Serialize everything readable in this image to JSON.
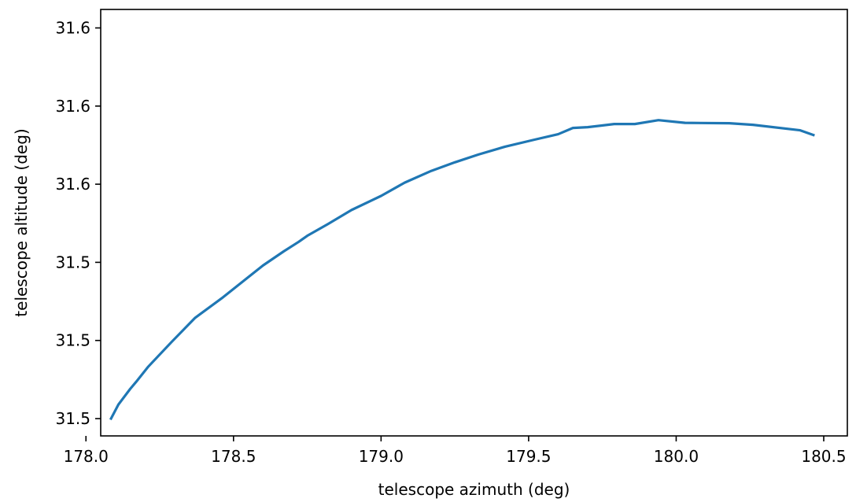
{
  "chart_data": {
    "type": "line",
    "title": "",
    "xlabel": "telescope azimuth (deg)",
    "ylabel": "telescope altitude (deg)",
    "xlim": [
      178.05,
      180.58
    ],
    "ylim": [
      31.5,
      31.6
    ],
    "x_ticks": [
      178.0,
      178.5,
      179.0,
      179.5,
      180.0,
      180.5
    ],
    "x_tick_labels": [
      "178.0",
      "178.5",
      "179.0",
      "179.5",
      "180.0",
      "180.5"
    ],
    "y_ticks": [
      31.5,
      31.52,
      31.54,
      31.56,
      31.58,
      31.6
    ],
    "y_tick_labels": [
      "31.5",
      "31.5",
      "31.5",
      "31.6",
      "31.6",
      "31.6"
    ],
    "grid": false,
    "line_color": "#1f77b4",
    "series": [
      {
        "name": "",
        "x": [
          178.085,
          178.11,
          178.15,
          178.17,
          178.21,
          178.29,
          178.37,
          178.46,
          178.55,
          178.6,
          178.67,
          178.72,
          178.75,
          178.82,
          178.9,
          179.0,
          179.08,
          179.17,
          179.25,
          179.33,
          179.42,
          179.52,
          179.6,
          179.65,
          179.7,
          179.79,
          179.86,
          179.94,
          180.03,
          180.18,
          180.26,
          180.42,
          180.465
        ],
        "y": [
          31.5,
          31.5036,
          31.5076,
          31.5094,
          31.5132,
          31.5196,
          31.5258,
          31.5308,
          31.5362,
          31.5392,
          31.5428,
          31.5452,
          31.5468,
          31.5498,
          31.5534,
          31.557,
          31.5604,
          31.5634,
          31.5656,
          31.5676,
          31.5696,
          31.5714,
          31.5728,
          31.5744,
          31.5746,
          31.5754,
          31.5754,
          31.5764,
          31.5757,
          31.5756,
          31.5752,
          31.5738,
          31.5726
        ]
      }
    ]
  }
}
